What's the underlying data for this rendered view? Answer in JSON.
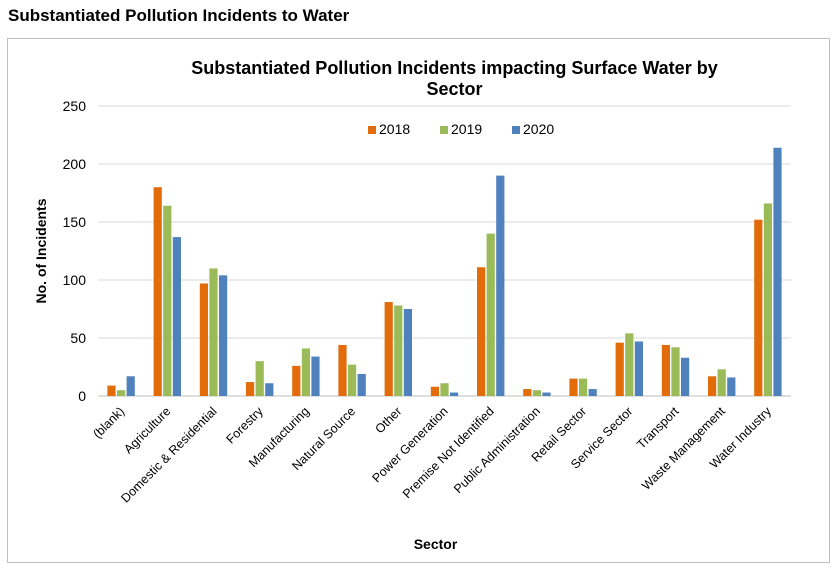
{
  "page": {
    "heading": "Substantiated Pollution Incidents to Water"
  },
  "chart_data": {
    "type": "bar",
    "title_lines": [
      "Substantiated Pollution Incidents impacting Surface Water by",
      "Sector"
    ],
    "xlabel": "Sector",
    "ylabel": "No. of Incidents",
    "ylim": [
      0,
      250
    ],
    "yticks": [
      0,
      50,
      100,
      150,
      200,
      250
    ],
    "grid": true,
    "legend_position": "top-center",
    "categories": [
      "(blank)",
      "Agriculture",
      "Domestic & Residential",
      "Forestry",
      "Manufacturing",
      "Natural Source",
      "Other",
      "Power Generation",
      "Premise Not Identified",
      "Public Administration",
      "Retail Sector",
      "Service Sector",
      "Transport",
      "Waste Management",
      "Water Industry"
    ],
    "series": [
      {
        "name": "2018",
        "color": "#E36C0A",
        "values": [
          9,
          180,
          97,
          12,
          26,
          44,
          81,
          8,
          111,
          6,
          15,
          46,
          44,
          17,
          152
        ]
      },
      {
        "name": "2019",
        "color": "#9BBB59",
        "values": [
          5,
          164,
          110,
          30,
          41,
          27,
          78,
          11,
          140,
          5,
          15,
          54,
          42,
          23,
          166
        ]
      },
      {
        "name": "2020",
        "color": "#4F81BD",
        "values": [
          17,
          137,
          104,
          11,
          34,
          19,
          75,
          3,
          190,
          3,
          6,
          47,
          33,
          16,
          214
        ]
      }
    ]
  }
}
